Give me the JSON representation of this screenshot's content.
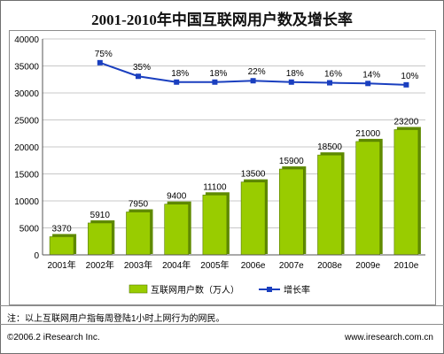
{
  "title": "2001-2010年中国互联网用户数及增长率",
  "note": "注：以上互联网用户指每周登陆1小时上网行为的网民。",
  "footer": {
    "copyright": "©2006.2 iResearch Inc.",
    "url": "www.iresearch.com.cn"
  },
  "colors": {
    "bar": "#99cc00",
    "bar_dark": "#5f8a00",
    "line": "#1a3fbf",
    "grid": "#c8c8c8"
  },
  "chart_data": {
    "type": "bar",
    "categories": [
      "2001年",
      "2002年",
      "2003年",
      "2004年",
      "2005年",
      "2006e",
      "2007e",
      "2008e",
      "2009e",
      "2010e"
    ],
    "ylim": [
      0,
      40000
    ],
    "yticks": [
      "0",
      "5000",
      "10000",
      "15000",
      "20000",
      "25000",
      "30000",
      "35000",
      "40000"
    ],
    "grid": true,
    "legend_position": "bottom",
    "series": [
      {
        "name": "互联网用户数（万人）",
        "type": "bar",
        "values": [
          3370,
          5910,
          7950,
          9400,
          11100,
          13500,
          15900,
          18500,
          21000,
          23200
        ],
        "labels": [
          "3370",
          "5910",
          "7950",
          "9400",
          "11100",
          "13500",
          "15900",
          "18500",
          "21000",
          "23200"
        ]
      },
      {
        "name": "增长率",
        "type": "line",
        "values": [
          null,
          75,
          35,
          18,
          18,
          22,
          18,
          16,
          14,
          10
        ],
        "labels": [
          "",
          "75%",
          "35%",
          "18%",
          "18%",
          "22%",
          "18%",
          "16%",
          "14%",
          "10%"
        ]
      }
    ]
  }
}
